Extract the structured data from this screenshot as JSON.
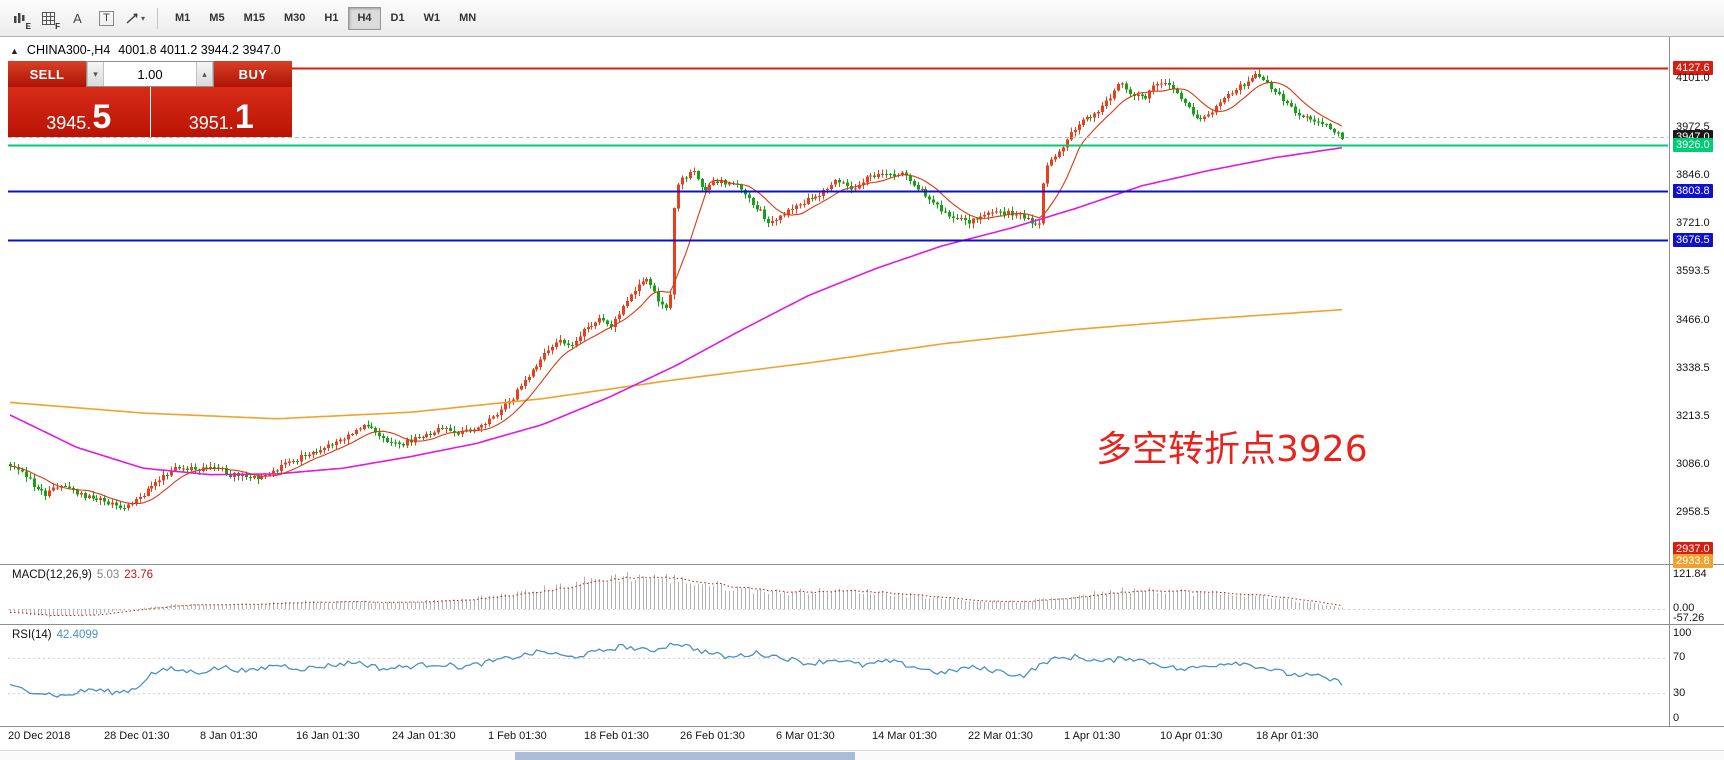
{
  "toolbar": {
    "icons": [
      {
        "id": "indicator-e",
        "glyph": "E"
      },
      {
        "id": "indicator-f",
        "glyph": "F"
      },
      {
        "id": "label-a",
        "glyph": "A"
      },
      {
        "id": "text-t",
        "glyph": "T"
      },
      {
        "id": "draw-tools",
        "glyph": "▾"
      }
    ],
    "timeframes": [
      "M1",
      "M5",
      "M15",
      "M30",
      "H1",
      "H4",
      "D1",
      "W1",
      "MN"
    ],
    "active_timeframe": "H4"
  },
  "chart": {
    "collapse_glyph": "▲",
    "title_symbol": "CHINA300-,H4",
    "ohlc": "4001.8 4011.2 3944.2 3947.0",
    "annotation": {
      "text": "多空转折点3926",
      "color": "#e8231d"
    }
  },
  "trade_panel": {
    "sell_label": "SELL",
    "buy_label": "BUY",
    "volume": "1.00",
    "vol_down_glyph": "▾",
    "vol_up_glyph": "▴",
    "sell_price_small": "3945.",
    "sell_price_big": "5",
    "buy_price_small": "3951.",
    "buy_price_big": "1"
  },
  "price_axis": [
    {
      "text": "4127.6",
      "price": 4127.6,
      "badge": "#d81e10"
    },
    {
      "text": "4101.0",
      "price": 4101.0
    },
    {
      "text": "3972.5",
      "price": 3972.5
    },
    {
      "text": "3947.0",
      "price": 3947.0,
      "badge": "#1a1a1a"
    },
    {
      "text": "3926.0",
      "price": 3926.0,
      "badge": "#00cb76"
    },
    {
      "text": "3846.0",
      "price": 3846.0
    },
    {
      "text": "3803.8",
      "price": 3803.8,
      "badge": "#1010cc"
    },
    {
      "text": "3721.0",
      "price": 3721.0
    },
    {
      "text": "3676.5",
      "price": 3676.5,
      "badge": "#1010cc"
    },
    {
      "text": "3593.5",
      "price": 3593.5
    },
    {
      "text": "3466.0",
      "price": 3466.0
    },
    {
      "text": "3338.5",
      "price": 3338.5
    },
    {
      "text": "3213.5",
      "price": 3213.5
    },
    {
      "text": "3086.0",
      "price": 3086.0
    },
    {
      "text": "2958.5",
      "price": 2958.5
    },
    {
      "text": "2937.0",
      "price": 2937.0,
      "badge": "#d81e10",
      "pin": "bottom1"
    },
    {
      "text": "2933.8",
      "price": 2933.8,
      "badge": "#efa32d",
      "pin": "bottom2"
    }
  ],
  "time_axis": [
    "20 Dec 2018",
    "28 Dec 01:30",
    "8 Jan 01:30",
    "16 Jan 01:30",
    "24 Jan 01:30",
    "1 Feb 01:30",
    "18 Feb 01:30",
    "26 Feb 01:30",
    "6 Mar 01:30",
    "14 Mar 01:30",
    "22 Mar 01:30",
    "1 Apr 01:30",
    "10 Apr 01:30",
    "18 Apr 01:30"
  ],
  "macd": {
    "name": "MACD(12,26,9)",
    "value_main": "5.03",
    "value_signal": "23.76",
    "axis": [
      "121.84",
      "0.00",
      "-57.26"
    ]
  },
  "rsi": {
    "name": "RSI(14)",
    "value": "42.4099",
    "axis": [
      "100",
      "70",
      "30",
      "0"
    ]
  },
  "chart_data": {
    "type": "candlestick",
    "symbol": "CHINA300-",
    "period": "H4",
    "current_ohlc": {
      "open": 4001.8,
      "high": 4011.2,
      "low": 3944.2,
      "close": 3947.0
    },
    "bid": 3945.5,
    "ask": 3951.1,
    "candle_count": 340,
    "visible_span_frac": 0.805,
    "up_color": "#e8401f",
    "down_color": "#17a117",
    "levels": [
      {
        "price": 4127.6,
        "color": "#d81e10",
        "width": 2,
        "style": "solid",
        "label": "resistance-line"
      },
      {
        "price": 3947.0,
        "color": "#b8b8b8",
        "width": 1,
        "style": "dash",
        "label": "bid-line"
      },
      {
        "price": 3926.0,
        "color": "#00cb76",
        "width": 2,
        "style": "solid",
        "label": "pivot-3926-line"
      },
      {
        "price": 3803.8,
        "color": "#1010cc",
        "width": 2,
        "style": "solid",
        "label": "support-1-line"
      },
      {
        "price": 3676.5,
        "color": "#1010cc",
        "width": 2,
        "style": "solid",
        "label": "support-2-line"
      }
    ],
    "close_anchors": [
      [
        0.0,
        3085
      ],
      [
        0.01,
        3060
      ],
      [
        0.025,
        3005
      ],
      [
        0.04,
        3030
      ],
      [
        0.055,
        3000
      ],
      [
        0.07,
        2990
      ],
      [
        0.085,
        2968
      ],
      [
        0.095,
        2990
      ],
      [
        0.11,
        3035
      ],
      [
        0.125,
        3080
      ],
      [
        0.14,
        3072
      ],
      [
        0.155,
        3080
      ],
      [
        0.165,
        3058
      ],
      [
        0.18,
        3048
      ],
      [
        0.195,
        3060
      ],
      [
        0.21,
        3090
      ],
      [
        0.225,
        3115
      ],
      [
        0.24,
        3140
      ],
      [
        0.255,
        3165
      ],
      [
        0.268,
        3188
      ],
      [
        0.28,
        3155
      ],
      [
        0.293,
        3138
      ],
      [
        0.308,
        3158
      ],
      [
        0.322,
        3178
      ],
      [
        0.335,
        3168
      ],
      [
        0.35,
        3182
      ],
      [
        0.365,
        3210
      ],
      [
        0.378,
        3265
      ],
      [
        0.39,
        3320
      ],
      [
        0.402,
        3378
      ],
      [
        0.412,
        3415
      ],
      [
        0.42,
        3395
      ],
      [
        0.432,
        3440
      ],
      [
        0.442,
        3470
      ],
      [
        0.45,
        3445
      ],
      [
        0.46,
        3500
      ],
      [
        0.47,
        3550
      ],
      [
        0.478,
        3572
      ],
      [
        0.486,
        3518
      ],
      [
        0.492,
        3495
      ],
      [
        0.496,
        3530
      ],
      [
        0.499,
        3800
      ],
      [
        0.505,
        3838
      ],
      [
        0.512,
        3858
      ],
      [
        0.52,
        3805
      ],
      [
        0.532,
        3830
      ],
      [
        0.545,
        3818
      ],
      [
        0.558,
        3772
      ],
      [
        0.57,
        3722
      ],
      [
        0.582,
        3748
      ],
      [
        0.595,
        3772
      ],
      [
        0.608,
        3798
      ],
      [
        0.62,
        3828
      ],
      [
        0.632,
        3812
      ],
      [
        0.645,
        3842
      ],
      [
        0.658,
        3852
      ],
      [
        0.67,
        3848
      ],
      [
        0.682,
        3810
      ],
      [
        0.695,
        3768
      ],
      [
        0.708,
        3732
      ],
      [
        0.72,
        3722
      ],
      [
        0.732,
        3742
      ],
      [
        0.745,
        3748
      ],
      [
        0.758,
        3738
      ],
      [
        0.768,
        3720
      ],
      [
        0.773,
        3712
      ],
      [
        0.777,
        3868
      ],
      [
        0.783,
        3892
      ],
      [
        0.79,
        3922
      ],
      [
        0.798,
        3962
      ],
      [
        0.806,
        3988
      ],
      [
        0.815,
        4008
      ],
      [
        0.824,
        4042
      ],
      [
        0.833,
        4090
      ],
      [
        0.842,
        4058
      ],
      [
        0.852,
        4048
      ],
      [
        0.86,
        4082
      ],
      [
        0.868,
        4088
      ],
      [
        0.877,
        4052
      ],
      [
        0.885,
        4018
      ],
      [
        0.893,
        3992
      ],
      [
        0.901,
        4008
      ],
      [
        0.909,
        4042
      ],
      [
        0.918,
        4068
      ],
      [
        0.927,
        4088
      ],
      [
        0.936,
        4110
      ],
      [
        0.944,
        4092
      ],
      [
        0.952,
        4058
      ],
      [
        0.961,
        4022
      ],
      [
        0.97,
        3998
      ],
      [
        0.979,
        3988
      ],
      [
        0.988,
        3975
      ],
      [
        1.0,
        3947
      ]
    ],
    "ma_fast": {
      "color": "#d93a12",
      "type": "sma",
      "period": 10
    },
    "ma_medium": {
      "color": "#e019e0",
      "anchors": [
        [
          0.0,
          3215
        ],
        [
          0.05,
          3130
        ],
        [
          0.1,
          3075
        ],
        [
          0.15,
          3058
        ],
        [
          0.2,
          3060
        ],
        [
          0.25,
          3075
        ],
        [
          0.3,
          3105
        ],
        [
          0.35,
          3140
        ],
        [
          0.4,
          3190
        ],
        [
          0.45,
          3262
        ],
        [
          0.5,
          3345
        ],
        [
          0.55,
          3440
        ],
        [
          0.6,
          3530
        ],
        [
          0.65,
          3600
        ],
        [
          0.7,
          3660
        ],
        [
          0.75,
          3705
        ],
        [
          0.8,
          3758
        ],
        [
          0.85,
          3818
        ],
        [
          0.9,
          3858
        ],
        [
          0.95,
          3892
        ],
        [
          1.0,
          3918
        ]
      ]
    },
    "ma_slow": {
      "color": "#efa32d",
      "anchors": [
        [
          0.0,
          3248
        ],
        [
          0.1,
          3220
        ],
        [
          0.2,
          3205
        ],
        [
          0.3,
          3222
        ],
        [
          0.4,
          3258
        ],
        [
          0.5,
          3308
        ],
        [
          0.6,
          3352
        ],
        [
          0.7,
          3402
        ],
        [
          0.8,
          3440
        ],
        [
          0.9,
          3468
        ],
        [
          1.0,
          3492
        ]
      ]
    },
    "macd_panel": {
      "hist_color": "#b2b2b2",
      "signal_color": "#cc1414",
      "current": {
        "macd": 5.03,
        "signal": 23.76
      },
      "axis_values": [
        121.84,
        0.0,
        -57.26
      ],
      "anchors": [
        [
          0.0,
          -12
        ],
        [
          0.03,
          -26
        ],
        [
          0.06,
          -20
        ],
        [
          0.09,
          -2
        ],
        [
          0.13,
          18
        ],
        [
          0.17,
          14
        ],
        [
          0.21,
          22
        ],
        [
          0.25,
          26
        ],
        [
          0.29,
          22
        ],
        [
          0.33,
          30
        ],
        [
          0.36,
          42
        ],
        [
          0.4,
          68
        ],
        [
          0.43,
          95
        ],
        [
          0.46,
          115
        ],
        [
          0.49,
          108
        ],
        [
          0.52,
          88
        ],
        [
          0.55,
          70
        ],
        [
          0.58,
          58
        ],
        [
          0.61,
          64
        ],
        [
          0.64,
          60
        ],
        [
          0.67,
          52
        ],
        [
          0.7,
          38
        ],
        [
          0.73,
          26
        ],
        [
          0.76,
          24
        ],
        [
          0.79,
          40
        ],
        [
          0.82,
          58
        ],
        [
          0.85,
          70
        ],
        [
          0.88,
          60
        ],
        [
          0.91,
          52
        ],
        [
          0.94,
          46
        ],
        [
          0.96,
          32
        ],
        [
          0.98,
          18
        ],
        [
          1.0,
          5
        ]
      ]
    },
    "rsi_panel": {
      "color": "#4a90c8",
      "current": 42.4099,
      "guide_levels": [
        70,
        30
      ],
      "axis_values": [
        100,
        70,
        30,
        0
      ],
      "anchors": [
        [
          0.0,
          38
        ],
        [
          0.02,
          32
        ],
        [
          0.04,
          27
        ],
        [
          0.06,
          35
        ],
        [
          0.08,
          31
        ],
        [
          0.095,
          36
        ],
        [
          0.105,
          52
        ],
        [
          0.12,
          58
        ],
        [
          0.14,
          54
        ],
        [
          0.16,
          60
        ],
        [
          0.18,
          55
        ],
        [
          0.2,
          63
        ],
        [
          0.22,
          58
        ],
        [
          0.24,
          62
        ],
        [
          0.26,
          66
        ],
        [
          0.28,
          58
        ],
        [
          0.3,
          61
        ],
        [
          0.32,
          64
        ],
        [
          0.34,
          60
        ],
        [
          0.36,
          66
        ],
        [
          0.38,
          72
        ],
        [
          0.4,
          78
        ],
        [
          0.42,
          71
        ],
        [
          0.44,
          77
        ],
        [
          0.46,
          84
        ],
        [
          0.48,
          78
        ],
        [
          0.5,
          88
        ],
        [
          0.52,
          78
        ],
        [
          0.54,
          71
        ],
        [
          0.56,
          76
        ],
        [
          0.58,
          71
        ],
        [
          0.6,
          64
        ],
        [
          0.62,
          69
        ],
        [
          0.64,
          62
        ],
        [
          0.66,
          67
        ],
        [
          0.68,
          60
        ],
        [
          0.7,
          53
        ],
        [
          0.72,
          60
        ],
        [
          0.74,
          56
        ],
        [
          0.76,
          50
        ],
        [
          0.78,
          68
        ],
        [
          0.8,
          72
        ],
        [
          0.82,
          66
        ],
        [
          0.84,
          71
        ],
        [
          0.86,
          64
        ],
        [
          0.88,
          57
        ],
        [
          0.9,
          62
        ],
        [
          0.92,
          66
        ],
        [
          0.94,
          60
        ],
        [
          0.96,
          52
        ],
        [
          0.98,
          50
        ],
        [
          1.0,
          42.4
        ]
      ]
    },
    "y_ticks": [
      4127.6,
      4101.0,
      3972.5,
      3947.0,
      3926.0,
      3846.0,
      3803.8,
      3721.0,
      3676.5,
      3593.5,
      3466.0,
      3338.5,
      3213.5,
      3086.0,
      2958.5
    ],
    "x_range": [
      "20 Dec 2018",
      "18 Apr 2019"
    ]
  }
}
